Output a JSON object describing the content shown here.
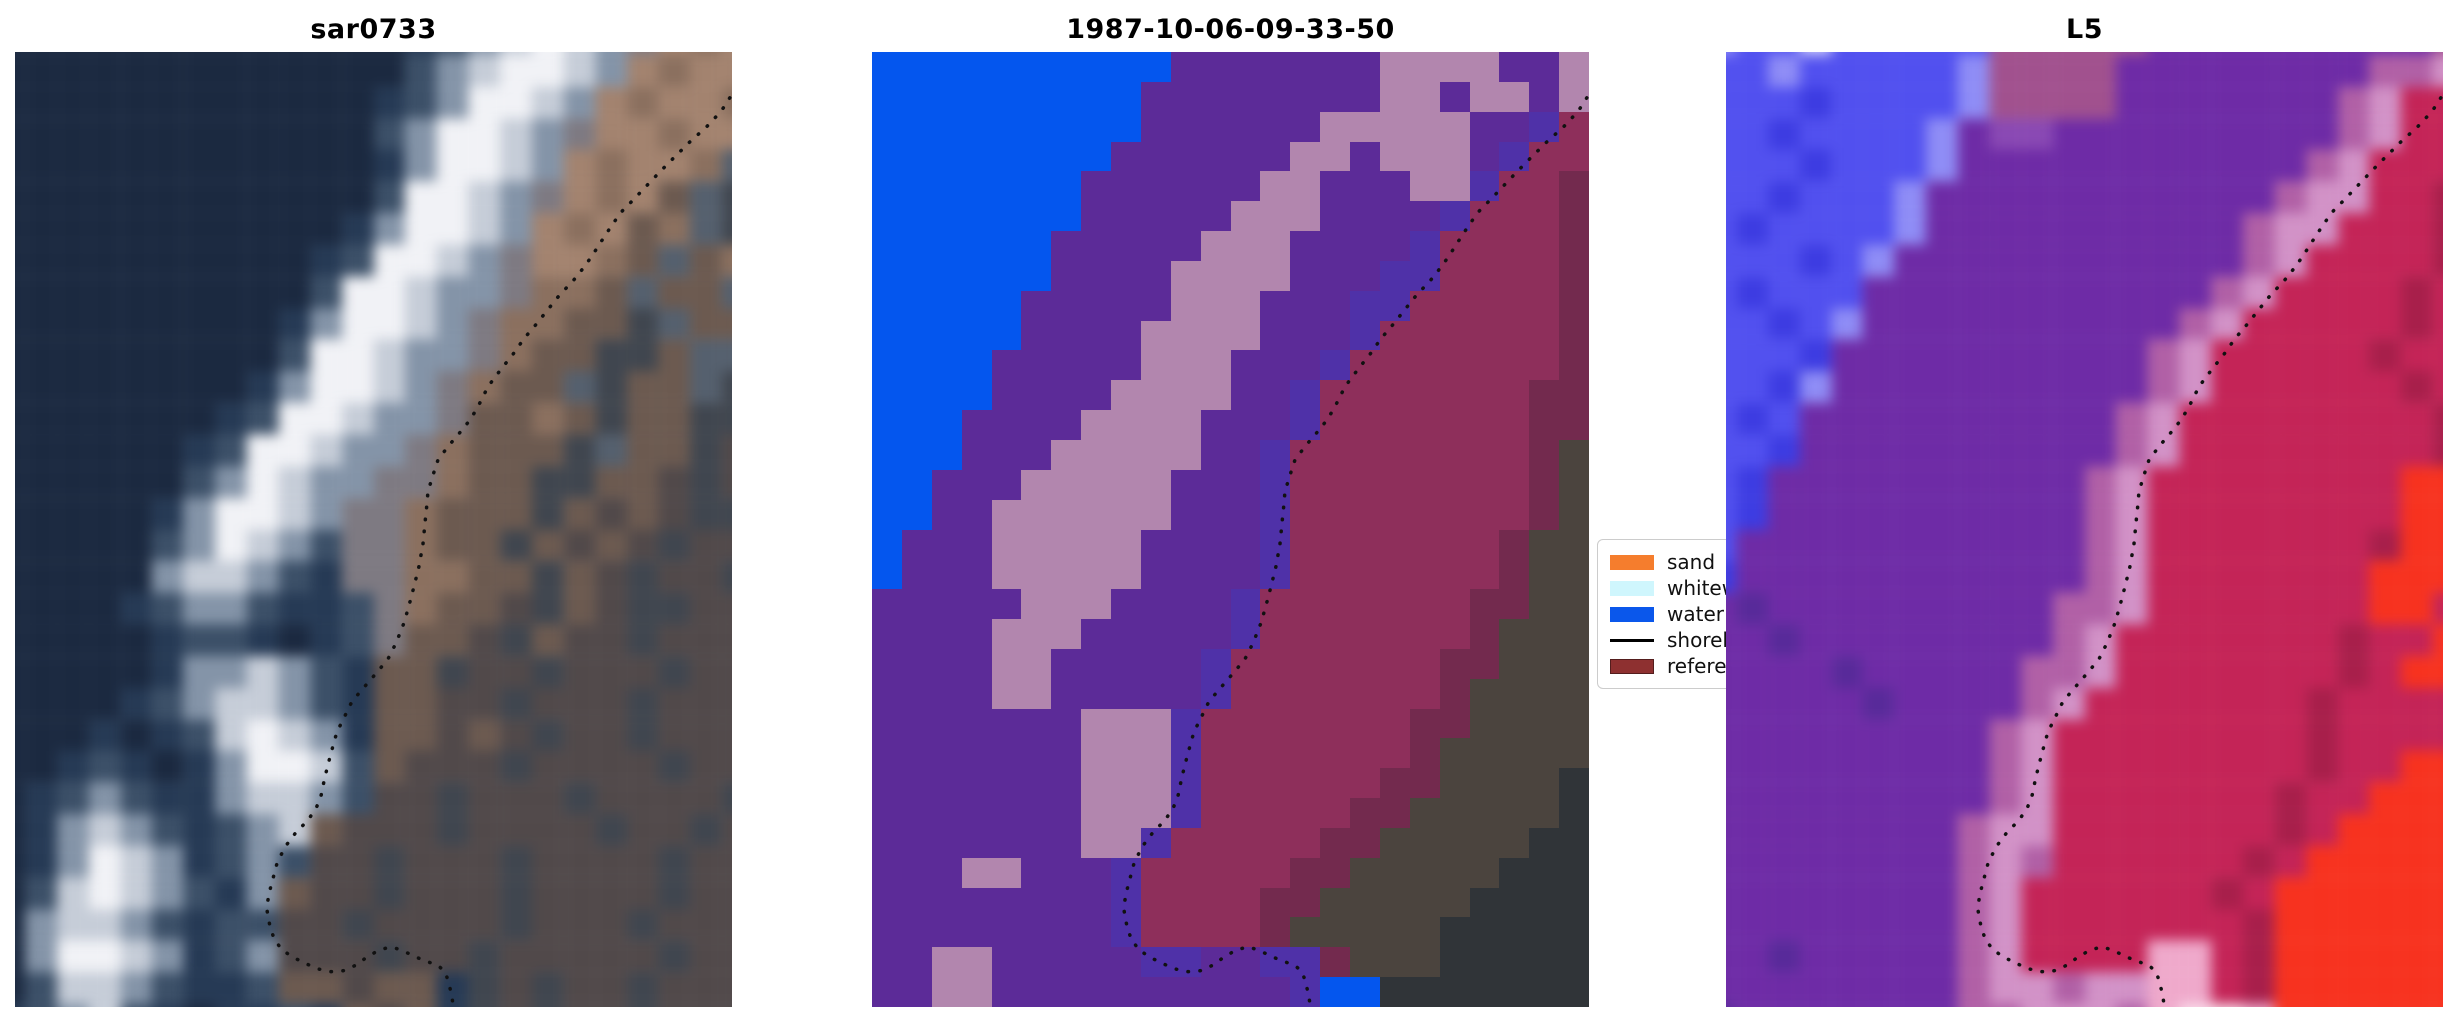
{
  "figure": {
    "background": "#ffffff"
  },
  "chart_data": {
    "type": "heatmap",
    "panels": [
      "sar0733",
      "1987-10-06-09-33-50",
      "L5"
    ],
    "legend_entries": [
      "sand",
      "whitewater",
      "water",
      "shoreline",
      "reference"
    ],
    "legend_position": "right of middle panel, clipped by third panel",
    "description": "Three coastal image tiles sharing one dotted shoreline: optical/SAR scene, classified overlay, and L5 false-color scene"
  },
  "shoreline": {
    "color": "#111111",
    "points": [
      [
        0.997,
        0.048
      ],
      [
        0.985,
        0.062
      ],
      [
        0.965,
        0.078
      ],
      [
        0.94,
        0.095
      ],
      [
        0.92,
        0.11
      ],
      [
        0.9,
        0.125
      ],
      [
        0.881,
        0.14
      ],
      [
        0.862,
        0.155
      ],
      [
        0.845,
        0.168
      ],
      [
        0.832,
        0.182
      ],
      [
        0.818,
        0.198
      ],
      [
        0.806,
        0.212
      ],
      [
        0.795,
        0.224
      ],
      [
        0.778,
        0.24
      ],
      [
        0.76,
        0.254
      ],
      [
        0.745,
        0.268
      ],
      [
        0.726,
        0.286
      ],
      [
        0.71,
        0.3
      ],
      [
        0.695,
        0.316
      ],
      [
        0.678,
        0.332
      ],
      [
        0.66,
        0.35
      ],
      [
        0.648,
        0.368
      ],
      [
        0.636,
        0.384
      ],
      [
        0.62,
        0.399
      ],
      [
        0.604,
        0.413
      ],
      [
        0.59,
        0.427
      ],
      [
        0.583,
        0.443
      ],
      [
        0.576,
        0.46
      ],
      [
        0.574,
        0.477
      ],
      [
        0.572,
        0.492
      ],
      [
        0.569,
        0.515
      ],
      [
        0.563,
        0.54
      ],
      [
        0.553,
        0.57
      ],
      [
        0.543,
        0.597
      ],
      [
        0.532,
        0.618
      ],
      [
        0.52,
        0.636
      ],
      [
        0.502,
        0.652
      ],
      [
        0.487,
        0.665
      ],
      [
        0.47,
        0.68
      ],
      [
        0.459,
        0.697
      ],
      [
        0.449,
        0.712
      ],
      [
        0.44,
        0.736
      ],
      [
        0.432,
        0.76
      ],
      [
        0.427,
        0.778
      ],
      [
        0.42,
        0.792
      ],
      [
        0.408,
        0.805
      ],
      [
        0.392,
        0.817
      ],
      [
        0.378,
        0.831
      ],
      [
        0.366,
        0.848
      ],
      [
        0.36,
        0.865
      ],
      [
        0.354,
        0.882
      ],
      [
        0.351,
        0.897
      ],
      [
        0.355,
        0.913
      ],
      [
        0.361,
        0.928
      ],
      [
        0.372,
        0.94
      ],
      [
        0.388,
        0.948
      ],
      [
        0.404,
        0.954
      ],
      [
        0.422,
        0.96
      ],
      [
        0.44,
        0.963
      ],
      [
        0.458,
        0.962
      ],
      [
        0.476,
        0.956
      ],
      [
        0.492,
        0.947
      ],
      [
        0.509,
        0.94
      ],
      [
        0.525,
        0.937
      ],
      [
        0.541,
        0.941
      ],
      [
        0.557,
        0.947
      ],
      [
        0.573,
        0.952
      ],
      [
        0.589,
        0.956
      ],
      [
        0.6,
        0.963
      ],
      [
        0.605,
        0.975
      ],
      [
        0.609,
        0.988
      ],
      [
        0.611,
        0.998
      ]
    ]
  },
  "legend": {
    "items": [
      {
        "label": "sand",
        "type": "patch",
        "color": "#f57d2d"
      },
      {
        "label": "whitewater",
        "type": "patch",
        "color": "#cff6fd"
      },
      {
        "label": "water",
        "type": "patch",
        "color": "#0a57eb"
      },
      {
        "label": "shoreline",
        "type": "line",
        "color": "#000000"
      },
      {
        "label": "reference",
        "type": "patch",
        "color": "#8e3030",
        "edge": "#541d1d"
      }
    ]
  },
  "panels": [
    {
      "title": "sar0733",
      "palette": {
        "N": "#1b2940",
        "n": "#263a55",
        "b": "#3c5068",
        "g": "#8494a8",
        "l": "#c6cdd8",
        "W": "#f1f2f6",
        "s": "#55606e",
        "p": "#a3836f",
        "t": "#8b705f",
        "d": "#6c5a50",
        "D": "#51494a",
        "k": "#40464f",
        "m": "#7e7a82"
      },
      "rows": [
        "NNNNNNNNNNNNNnbglWlgmptp",
        "NNNNNNNNNNNNNbglWWlgptpp",
        "NNNNNNNNNNNNnbgWWlgptppt",
        "NNNNNNNNNNNNbgWWlgmpptpp",
        "NNNNNNNNNNNNngWWlgptppts",
        "NNNNNNNNNNNNbWWlgmptpdsk",
        "NNNNNNNNNNNngWWlgptpdtsk",
        "NNNNNNNNNNnbWWlgmpptdsdt",
        "NNNNNNNNNNbWWlggmttdsdds",
        "NNNNNNNNNngWWlgmttddksdd",
        "NNNNNNNNNbWWlggmtddkkdss",
        "NNNNNNNNngWWlgmtddskddsk",
        "NNNNNNNnbWWlggmddtdkddkk",
        "NNNNNNnbWWlggmtdddksddkD",
        "NNNNNNbgWlggmmtddkkddDkD",
        "NNNNNngWWlgmmtdddkdDdDkk",
        "NNNNNbgWlgbmmtddkdDdDkDD",
        "NNNNNgllgbnmmttddkdDkDDk",
        "NNNNnbggbnnbmtddDkdDkkDD",
        "NNNNNnbbnNnbmddDkdDDkDDD",
        "NNNNNngglgbnddkDDkDDDkDD",
        "NNNNnbgllgbnddDDkDDDkDDD",
        "NNNnNnblWlgnddDdDkDDkDDD",
        "NNnbnNngWWlbdDDDkDDDDkDD",
        "NnbgbnngllgbDDkDDDkDDDDk",
        "NnglgbnbgldDDDkDDDDkDDkD",
        "NngWlgnbgbDDkDDDkDDDDkDD",
        "NblWlgbngdDDkDDDkDDDDkDD",
        "NgllgbnbbDDkDDDDkDDDkDDD",
        "NgWWlgnbgDDDkDDkDDDDDkDD",
        "NbllgbnnbddDddnkDkDDkDDD",
        "nbglbnNnnbndDdnkDkDDkDDD"
      ]
    },
    {
      "title": "1987-10-06-09-33-50",
      "palette": {
        "B": "#0456ee",
        "P": "#5c2b98",
        "V": "#4f31a8",
        "M": "#b286ae",
        "R": "#8e2f5b",
        "r": "#732a4e",
        "O": "#4b443e",
        "o": "#303438"
      },
      "rows": [
        "BBBBBBBBBBPPPPPPPMMMMPPM",
        "BBBBBBBBBPPPPPPPPMMPMMPM",
        "BBBBBBBBBPPPPPPMMMMMPPVR",
        "BBBBBBBBPPPPPPMMPMMMPVRR",
        "BBBBBBBPPPPPPMMPPPMMVRRr",
        "BBBBBBBPPPPPMMMPPPPVRRRr",
        "BBBBBBPPPPPMMMPPPPVRRRRr",
        "BBBBBBPPPPMMMMPPPVVRRRRr",
        "BBBBBPPPPPMMMPPPVVRRRRRr",
        "BBBBBPPPPMMMMPPPVRRRRRRr",
        "BBBBPPPPPMMMPPPVRRRRRRRr",
        "BBBBPPPPMMMMPPVRRRRRRRrr",
        "BBBPPPPMMMMPPPVRRRRRRRrr",
        "BBBPPPMMMMMPPVRRRRRRRRrO",
        "BBPPPMMMMMPPPVRRRRRRRRrO",
        "BBPPMMMMMMPPPVRRRRRRRRrO",
        "BPPPMMMMMPPPPVRRRRRRRrOO",
        "BPPPMMMMMPPPPVRRRRRRRrOO",
        "PPPPPMMMPPPPVRRRRRRRrrOO",
        "PPPPMMMPPPPPVRRRRRRRrOOO",
        "PPPPMMPPPPPVRRRRRRRrrOOO",
        "PPPPMMPPPPPVRRRRRRRrOOOO",
        "PPPPPPPMMMVRRRRRRRrrOOOO",
        "PPPPPPPMMMVRRRRRRRrOOOOO",
        "PPPPPPPMMMVRRRRRRrrOOOOo",
        "PPPPPPPMMMVRRRRRrrOOOOOo",
        "PPPPPPPMMVRRRRRrrOOOOOoo",
        "PPPMMPPPVRRRRRrrOOOOOooo",
        "PPPPPPPPVRRRRrrOOOOOoooo",
        "PPPPPPPPVRRRRrOOOOOooooo",
        "PPMMPPPPPVVPPVVrOOOooooo",
        "PPMMPPPPPPPPPPVBBooooooo"
      ]
    },
    {
      "title": "L5",
      "palette": {
        "U": "#5150ef",
        "u": "#3d3ce2",
        "L": "#8f8df6",
        "w": "#cfcdfb",
        "X": "#a1518e",
        "E": "#8a49b4",
        "P": "#6e2ba6",
        "Q": "#582a9a",
        "M": "#b160a6",
        "K": "#d292c7",
        "C": "#c42457",
        "c": "#a81f4b",
        "F": "#f7321f",
        "k": "#efa9cb",
        "W": "#f9dcea"
      },
      "rows": [
        "LUUwUUUUUXXXXXPPPPPPPPPX",
        "UULUUUUULXXXXPPPPPPPPMMK",
        "UUUuUUUULXXXXPPPPPPPMKCC",
        "UUuUUUULPEEPPPPPPPPPMKCC",
        "UUUuUUULPPPPPPPPPPPMKCCC",
        "UUuUUULPPPPPPPPPPPMKKCCc",
        "UuUUUULPPPPPPPPPPMKKCCCc",
        "UUUuULPPPPPPPPPPPMKCCCCc",
        "UuUUUPPPPPPPPPPPMKCCCCcC",
        "UUuULPPPPPPPPPPMKCCCCCcC",
        "UUUuPPPPPPPPPPMKCCCCCcCC",
        "UUuLPPPPPPPPPPMKCCCCCCcC",
        "UuUPPPPPPPPPPMKCCCCCCCCc",
        "UUuPPPPPPPPPPMKCCCCCCCCc",
        "UuPPPPPPPPPPMKCCCCCCCCFF",
        "UuPPPPPPPPPPMKCCCCCCCCFF",
        "UPPPPPPPPPPPMKCCCCCCCcFF",
        "uPPPPPPPPPPPMKCCCCCCCFFF",
        "PQPPPPPPPPPMMKCCCCCCCFFC",
        "PPQPPPPPPPPMKCCCCCCCcCCF",
        "PPPPQPPPPPMMKCCCCCCCcCFF",
        "PPPPPQPPPPMKCCCCCCCcCCCC",
        "PPPPPPPPPMKCCCCCCCCcCCCC",
        "PPPPPPPPPMKCCCCCCCCcCCFF",
        "PPPPPPPPPMKCCCCCCCcCCFFF",
        "PPPPPPPPMKKCCCCCCCcCFFFF",
        "PPPPPPPPMKMCCCCCCcCFFFFF",
        "PPPPPPPPMKCCCCCCcCFFFFFF",
        "PPPPPPPPMKCCCCCCCcFFFFFF",
        "PPQPPPPPMKCCCCkkCcFFFFFF",
        "PPPPPPPPMKKMKKkkCcFFFFFF",
        "QPPPPPPPMMKKKMkWWkFFFFFF"
      ]
    }
  ]
}
